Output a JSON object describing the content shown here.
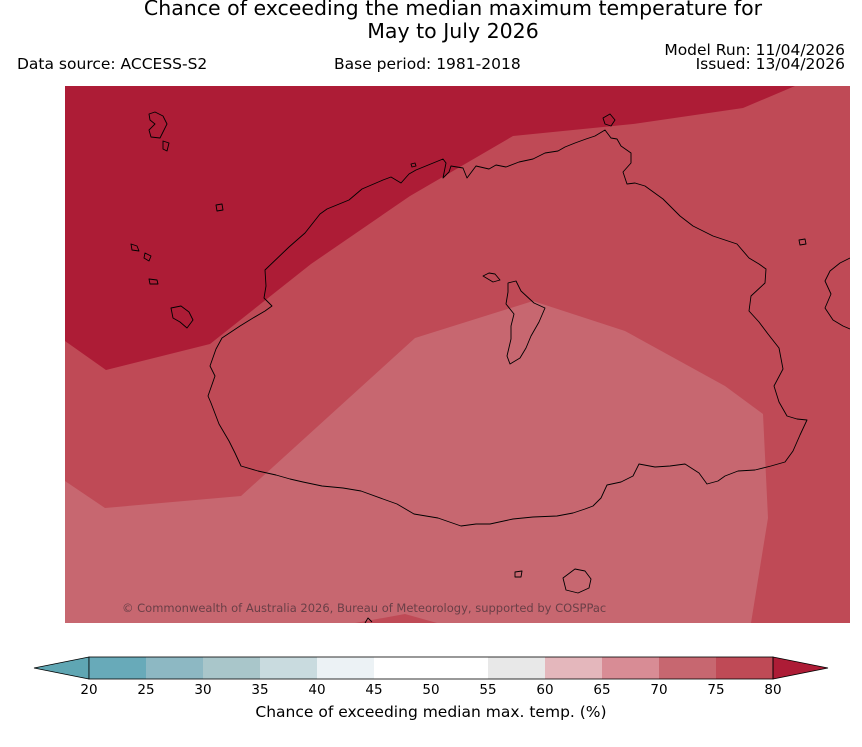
{
  "title": {
    "line1": "Chance of exceeding the median maximum temperature for",
    "line2": "May to July 2026"
  },
  "header": {
    "data_source": "Data source: ACCESS-S2",
    "base_period": "Base period: 1981-2018",
    "model_run": "Model Run: 11/04/2026",
    "issued": "Issued: 13/04/2026"
  },
  "map": {
    "copyright": "© Commonwealth of Australia 2026, Bureau of Meteorology, supported by COSPPac",
    "zones": [
      {
        "name": "70-75",
        "color": "#c76770"
      },
      {
        "name": "75-80",
        "color": "#bf4a56"
      },
      {
        "name": "above-80",
        "color": "#ad1c36"
      }
    ],
    "coastline_color": "#000000"
  },
  "colorbar": {
    "label": "Chance of exceeding median max. temp. (%)",
    "ticks": [
      "20",
      "25",
      "30",
      "35",
      "40",
      "45",
      "50",
      "55",
      "60",
      "65",
      "70",
      "75",
      "80"
    ],
    "segment_colors": [
      "#68aab9",
      "#8db8c3",
      "#a9c6ca",
      "#c9dbdf",
      "#ecf2f5",
      "#ffffff",
      "#ffffff",
      "#e8e8e8",
      "#e4b7bc",
      "#d88c95",
      "#c76770",
      "#bf4a56"
    ],
    "low_extend_color": "#5fa6b3",
    "high_extend_color": "#ad1c36"
  }
}
